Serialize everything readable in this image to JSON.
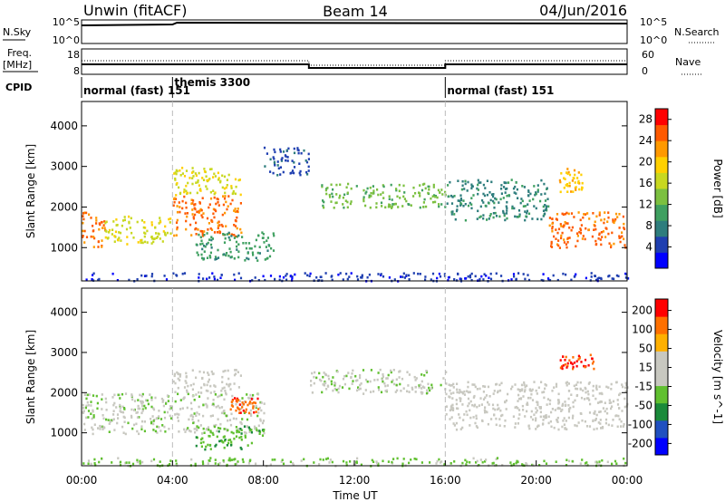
{
  "header": {
    "station": "Unwin (fitACF)",
    "beam": "Beam 14",
    "date": "04/Jun/2016"
  },
  "summary_panels": {
    "nsky_label": "N.Sky",
    "nsky_ticks": [
      "10^5",
      "10^0"
    ],
    "nsearch_label": "N.Search",
    "nsearch_ticks": [
      "10^5",
      "10^0"
    ],
    "freq_label": "Freq.",
    "freq_unit": "[MHz]",
    "freq_ticks": [
      "18",
      "8"
    ],
    "nave_label": "Nave",
    "nave_ticks": [
      "60",
      "0"
    ],
    "cpid_label": "CPID",
    "cpid_segments": [
      {
        "start_hour": 0,
        "end_hour": 4,
        "text": "normal (fast) 151"
      },
      {
        "start_hour": 4,
        "end_hour": 16,
        "text": "themis 3300"
      },
      {
        "start_hour": 16,
        "end_hour": 24,
        "text": "normal (fast) 151"
      }
    ]
  },
  "xaxis": {
    "label": "Time UT",
    "ticks": [
      "00:00",
      "04:00",
      "08:00",
      "12:00",
      "16:00",
      "20:00",
      "00:00"
    ]
  },
  "chart_data": [
    {
      "type": "heatmap",
      "name": "power",
      "ylabel": "Slant Range [km]",
      "yticks": [
        1000,
        2000,
        3000,
        4000
      ],
      "ylim": [
        180,
        4600
      ],
      "xlim_hours": [
        0,
        24
      ],
      "colorbar_label": "Power [dB]",
      "colorbar_ticks": [
        4,
        8,
        12,
        16,
        20,
        24,
        28
      ],
      "colorbar_range": [
        0,
        30
      ],
      "colors": [
        "#0000ff",
        "#1f3fb0",
        "#2e7d7d",
        "#3fa060",
        "#7cc040",
        "#c8d820",
        "#ffd000",
        "#ff9900",
        "#ff5a00",
        "#ff0000"
      ],
      "bands": [
        {
          "t0": 0.0,
          "t1": 1.0,
          "r0": 1000,
          "r1": 1900,
          "level": 8
        },
        {
          "t0": 1.0,
          "t1": 3.9,
          "r0": 1100,
          "r1": 1800,
          "level": 5
        },
        {
          "t0": 4.0,
          "t1": 7.0,
          "r0": 1300,
          "r1": 2300,
          "level": 8
        },
        {
          "t0": 4.0,
          "t1": 7.0,
          "r0": 2300,
          "r1": 3000,
          "level": 5
        },
        {
          "t0": 5.0,
          "t1": 8.5,
          "r0": 700,
          "r1": 1400,
          "level": 3
        },
        {
          "t0": 8.0,
          "t1": 10.0,
          "r0": 2800,
          "r1": 3500,
          "level": 1
        },
        {
          "t0": 10.5,
          "t1": 16.0,
          "r0": 2000,
          "r1": 2600,
          "level": 4
        },
        {
          "t0": 16.0,
          "t1": 20.5,
          "r0": 1700,
          "r1": 2700,
          "level": 2
        },
        {
          "t0": 20.5,
          "t1": 24.0,
          "r0": 1000,
          "r1": 1900,
          "level": 8
        },
        {
          "t0": 21.0,
          "t1": 22.0,
          "r0": 2400,
          "r1": 3000,
          "level": 6
        },
        {
          "t0": 0.0,
          "t1": 24.0,
          "r0": 200,
          "r1": 400,
          "level": 1
        }
      ]
    },
    {
      "type": "heatmap",
      "name": "velocity",
      "ylabel": "Slant Range [km]",
      "yticks": [
        1000,
        2000,
        3000,
        4000
      ],
      "ylim": [
        180,
        4600
      ],
      "xlim_hours": [
        0,
        24
      ],
      "colorbar_label": "Velocity [m s^-1]",
      "colorbar_ticks": [
        200,
        100,
        50,
        15,
        -15,
        -50,
        -100,
        -200
      ],
      "colorbar_range": [
        -250,
        250
      ],
      "colors": [
        "#0000ff",
        "#2050c0",
        "#1a8a3a",
        "#60c030",
        "#c8c8c0",
        "#c8c8c0",
        "#ffb000",
        "#ff7000",
        "#ff0000"
      ],
      "bands": [
        {
          "t0": 0.0,
          "t1": 8.0,
          "r0": 1000,
          "r1": 2000,
          "level": 4
        },
        {
          "t0": 4.0,
          "t1": 7.0,
          "r0": 2000,
          "r1": 2600,
          "level": 4
        },
        {
          "t0": 5.0,
          "t1": 8.0,
          "r0": 600,
          "r1": 1200,
          "level": 3
        },
        {
          "t0": 6.5,
          "t1": 7.8,
          "r0": 1500,
          "r1": 1900,
          "level": 7
        },
        {
          "t0": 10.0,
          "t1": 16.0,
          "r0": 2000,
          "r1": 2600,
          "level": 4
        },
        {
          "t0": 16.0,
          "t1": 24.0,
          "r0": 1100,
          "r1": 2300,
          "level": 4
        },
        {
          "t0": 21.0,
          "t1": 22.5,
          "r0": 2600,
          "r1": 3000,
          "level": 8
        },
        {
          "t0": 0.0,
          "t1": 24.0,
          "r0": 200,
          "r1": 400,
          "level": 3
        }
      ]
    }
  ]
}
